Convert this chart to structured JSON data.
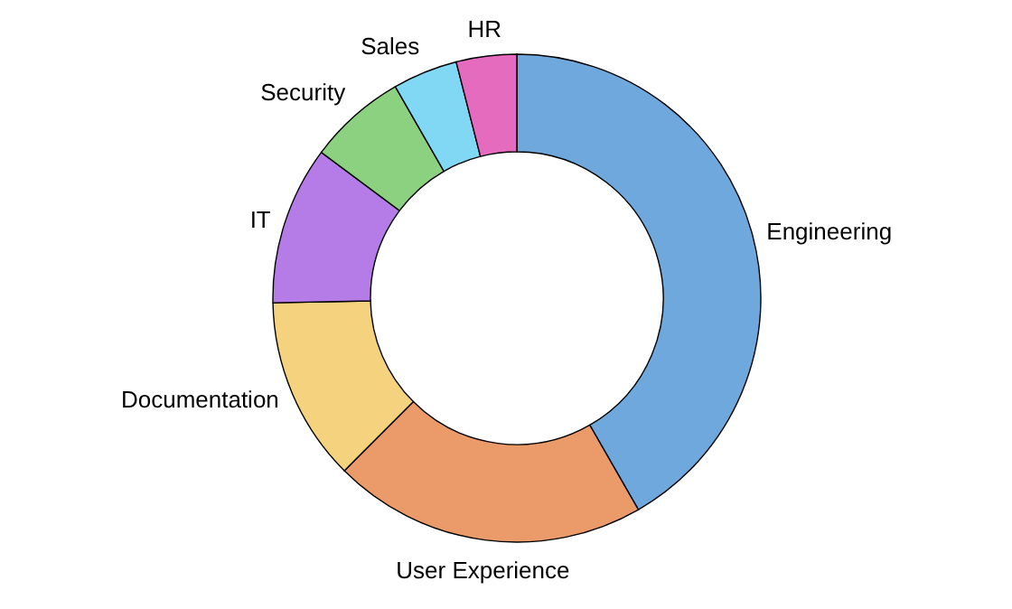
{
  "chart_data": {
    "type": "donut",
    "categories": [
      "Engineering",
      "User Experience",
      "Documentation",
      "IT",
      "Security",
      "Sales",
      "HR"
    ],
    "values": [
      41.7,
      20.8,
      12.2,
      10.5,
      6.5,
      4.3,
      4.0
    ],
    "colors": [
      "#6fa8dc",
      "#eb9b6a",
      "#f5d27d",
      "#b57be6",
      "#8bd17f",
      "#80d8f5",
      "#e56bbf"
    ],
    "legend": false
  }
}
